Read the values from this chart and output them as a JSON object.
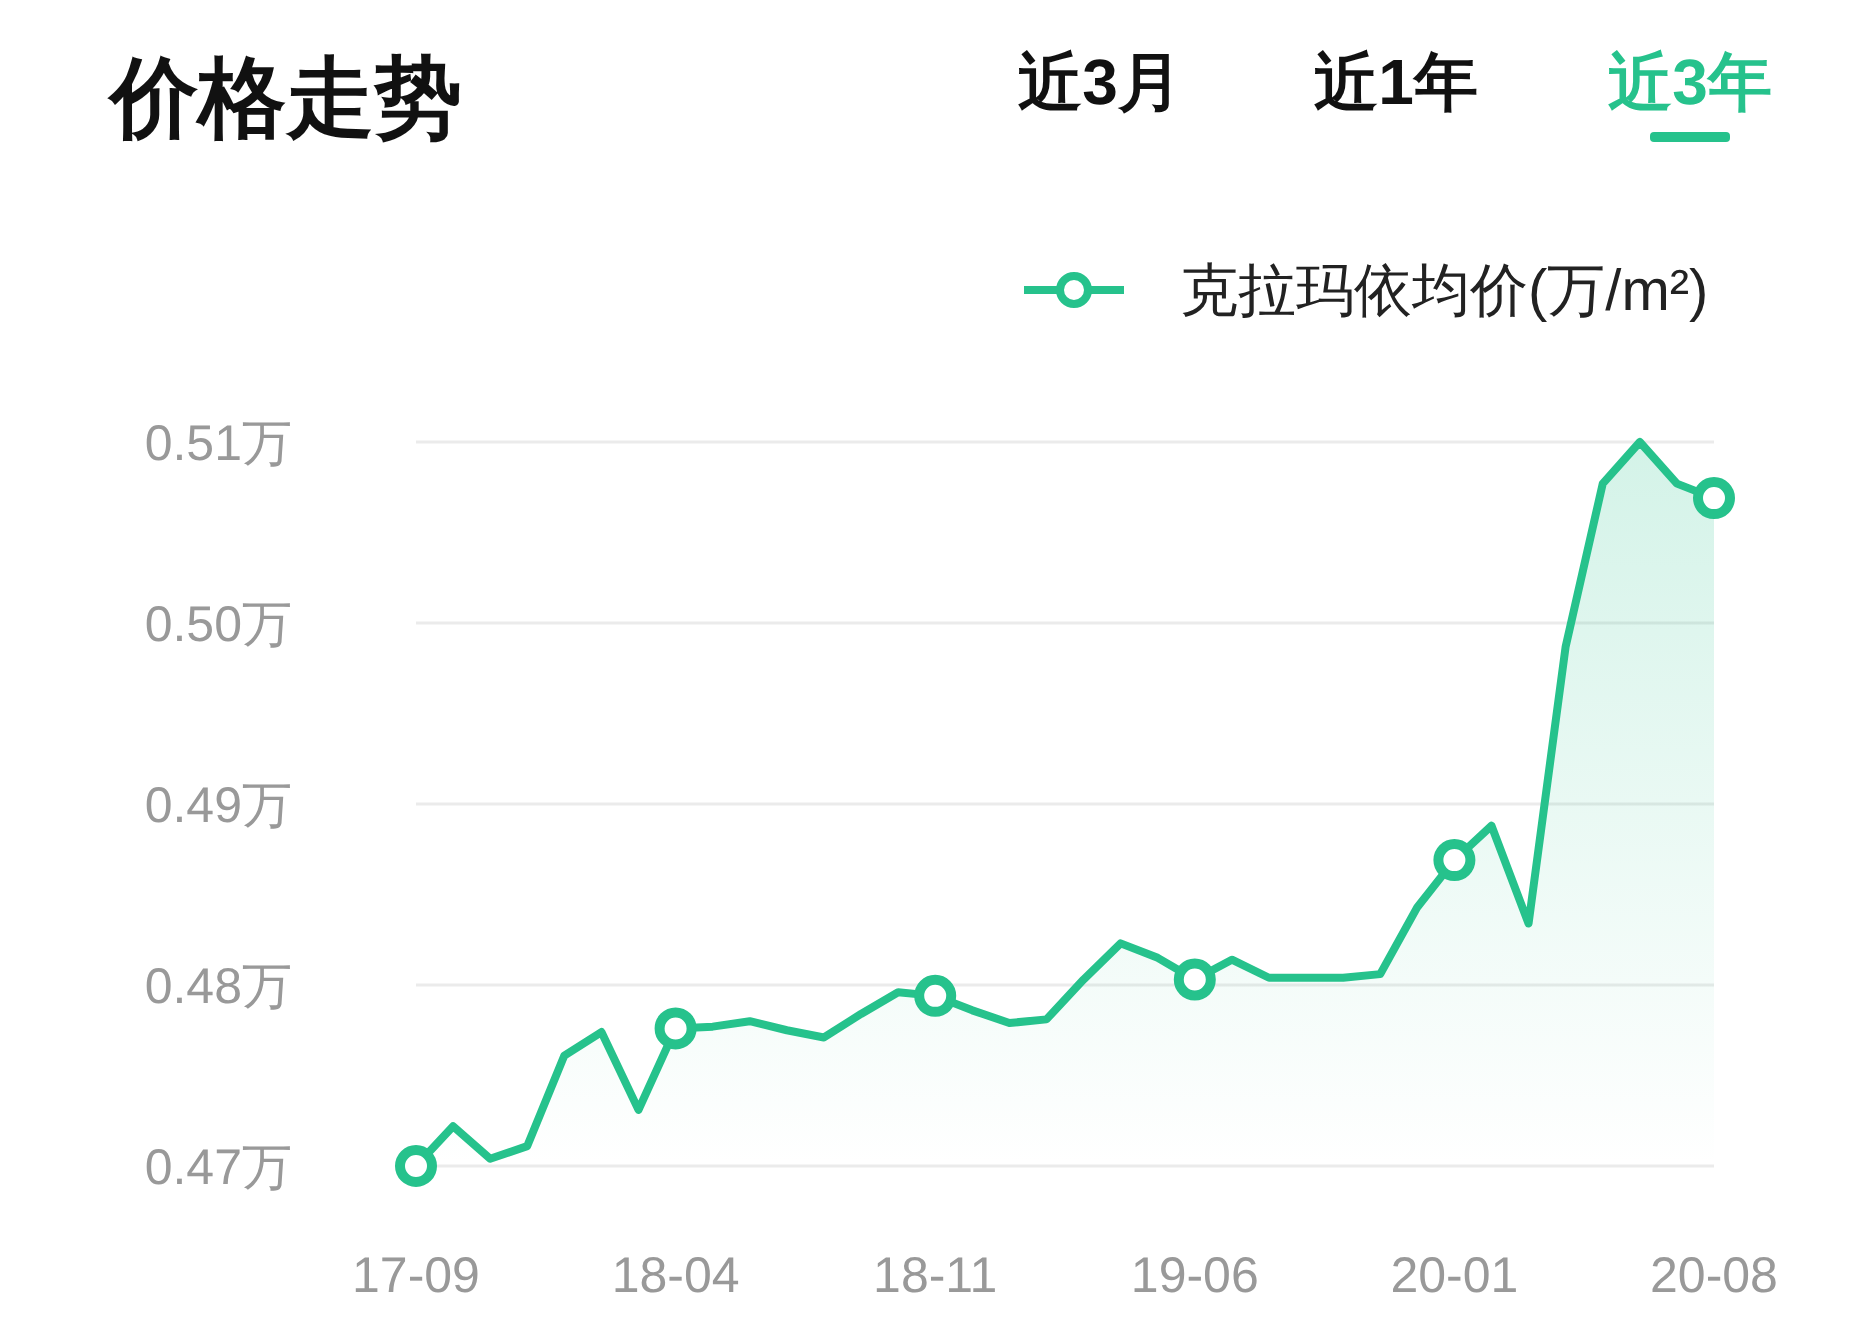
{
  "chart_data": {
    "type": "area",
    "title": "价格走势",
    "annotations": [
      "近3月",
      "近1年",
      "近3年"
    ],
    "categories": [
      "17-09",
      null,
      null,
      null,
      null,
      null,
      null,
      "18-04",
      null,
      null,
      null,
      null,
      null,
      null,
      "18-11",
      null,
      null,
      null,
      null,
      null,
      null,
      "19-06",
      null,
      null,
      null,
      null,
      null,
      null,
      "20-01",
      null,
      null,
      null,
      null,
      null,
      null,
      "20-08"
    ],
    "series": [
      {
        "name": "克拉玛依均价(万/m²)",
        "color": "#26c28c",
        "values": [
          0.47,
          0.4722,
          0.4704,
          0.4711,
          0.4761,
          0.4774,
          0.4731,
          0.4776,
          0.4777,
          0.478,
          0.4775,
          0.4771,
          0.4784,
          0.4796,
          0.4794,
          0.4786,
          0.4779,
          0.4781,
          0.4803,
          0.4823,
          0.4815,
          0.4803,
          0.4814,
          0.4804,
          0.4804,
          0.4804,
          0.4806,
          0.4843,
          0.4869,
          0.4888,
          0.4834,
          0.4987,
          0.5077,
          0.51,
          0.5077,
          0.5069
        ]
      },
      {
        "type": "scatter",
        "marker": "circle",
        "color": "#26c28c",
        "values": [
          0.47,
          null,
          null,
          null,
          null,
          null,
          null,
          0.4776,
          null,
          null,
          null,
          null,
          null,
          null,
          0.4794,
          null,
          null,
          null,
          null,
          null,
          null,
          0.4803,
          null,
          null,
          null,
          null,
          null,
          null,
          0.4869,
          null,
          null,
          null,
          null,
          null,
          null,
          0.5069
        ]
      }
    ],
    "ylim": [
      0.47,
      0.51
    ],
    "yticks": [
      {
        "value": 0.47,
        "label": "0.47万"
      },
      {
        "value": 0.48,
        "label": "0.48万"
      },
      {
        "value": 0.49,
        "label": "0.49万"
      },
      {
        "value": 0.5,
        "label": "0.50万"
      },
      {
        "value": 0.51,
        "label": "0.51万"
      }
    ],
    "grid": "y",
    "legend": "top right",
    "line_style": "solid"
  }
}
